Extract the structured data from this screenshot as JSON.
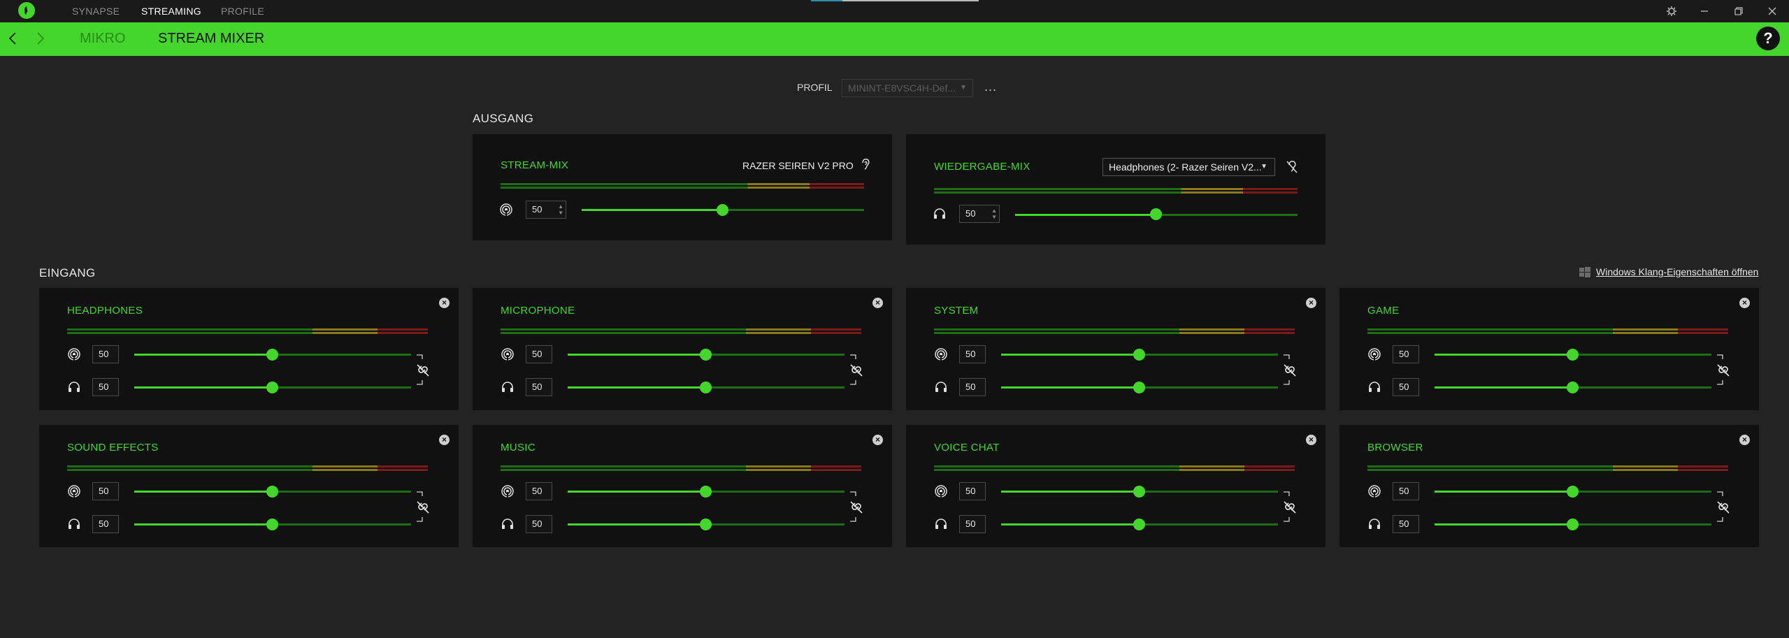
{
  "titlebar": {
    "tabs": [
      "SYNAPSE",
      "STREAMING",
      "PROFILE"
    ],
    "active_tab": "STREAMING"
  },
  "header": {
    "breadcrumb_device": "MIKRO",
    "page_title": "STREAM MIXER",
    "help": "?"
  },
  "profile": {
    "label": "PROFIL",
    "selected": "MININT-E8VSC4H-Def...",
    "more": "..."
  },
  "ausgang": {
    "title": "AUSGANG",
    "stream_mix": {
      "title": "STREAM-MIX",
      "device": "RAZER SEIREN V2 PRO",
      "volume": "50",
      "level": 0.5
    },
    "wiedergabe_mix": {
      "title": "WIEDERGABE-MIX",
      "device": "Headphones (2- Razer Seiren V2...",
      "volume": "50",
      "level": 0.5
    }
  },
  "eingang": {
    "title": "EINGANG",
    "windows_link": "Windows Klang-Eigenschaften öffnen",
    "channels": [
      {
        "title": "HEADPHONES",
        "stream_volume": "50",
        "monitor_volume": "50"
      },
      {
        "title": "MICROPHONE",
        "stream_volume": "50",
        "monitor_volume": "50"
      },
      {
        "title": "SYSTEM",
        "stream_volume": "50",
        "monitor_volume": "50"
      },
      {
        "title": "GAME",
        "stream_volume": "50",
        "monitor_volume": "50"
      },
      {
        "title": "SOUND EFFECTS",
        "stream_volume": "50",
        "monitor_volume": "50"
      },
      {
        "title": "MUSIC",
        "stream_volume": "50",
        "monitor_volume": "50"
      },
      {
        "title": "VOICE CHAT",
        "stream_volume": "50",
        "monitor_volume": "50"
      },
      {
        "title": "BROWSER",
        "stream_volume": "50",
        "monitor_volume": "50"
      }
    ]
  },
  "colors": {
    "accent": "#44d62c",
    "meter_green": "#1f6d15",
    "meter_yellow": "#8a7a1c",
    "meter_red": "#7a1a1a",
    "card_bg": "#111111",
    "page_bg": "#232323"
  },
  "icons": {
    "stream": "broadcast-icon",
    "monitor": "headphones-icon",
    "link": "unlink-icon",
    "close": "close-icon",
    "ear": "ear-icon"
  }
}
